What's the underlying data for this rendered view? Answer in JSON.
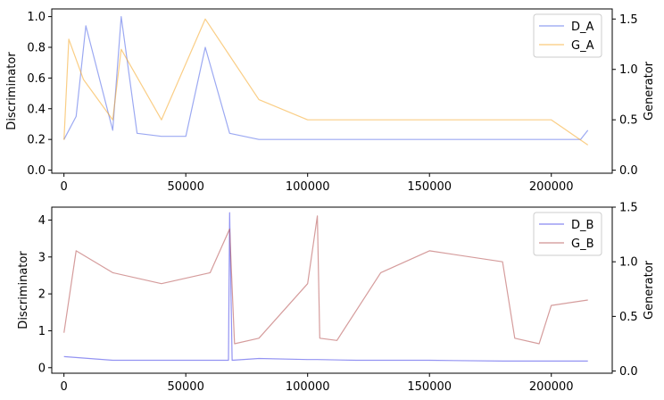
{
  "chart_data": [
    {
      "type": "line",
      "title": "",
      "xlabel": "",
      "ylabel": "Discriminator",
      "y2label": "Generator",
      "xlim": [
        -5000,
        225000
      ],
      "ylim": [
        -0.02,
        1.05
      ],
      "y2lim": [
        -0.03,
        1.6
      ],
      "xticks": [
        "0",
        "50000",
        "100000",
        "150000",
        "200000"
      ],
      "yticks": [
        "0.0",
        "0.2",
        "0.4",
        "0.6",
        "0.8",
        "1.0"
      ],
      "y2ticks": [
        "0.0",
        "0.5",
        "1.0",
        "1.5"
      ],
      "legend_position": "top-right",
      "series": [
        {
          "name": "D_A",
          "axis": "left",
          "color": "#4a63e8",
          "x": [
            0,
            5000,
            9000,
            20000,
            23500,
            30000,
            40000,
            50000,
            58000,
            68000,
            80000,
            100000,
            120000,
            150000,
            180000,
            200000,
            212000,
            215000
          ],
          "values": [
            0.2,
            0.35,
            0.94,
            0.26,
            1.0,
            0.24,
            0.22,
            0.22,
            0.8,
            0.24,
            0.2,
            0.2,
            0.2,
            0.2,
            0.2,
            0.2,
            0.2,
            0.26
          ]
        },
        {
          "name": "G_A",
          "axis": "right",
          "color": "#f5a623",
          "x": [
            0,
            2000,
            8000,
            20000,
            23500,
            40000,
            58000,
            80000,
            100000,
            120000,
            150000,
            180000,
            200000,
            215000
          ],
          "values": [
            0.3,
            1.3,
            0.9,
            0.5,
            1.2,
            0.5,
            1.5,
            0.7,
            0.5,
            0.5,
            0.5,
            0.5,
            0.5,
            0.25
          ]
        }
      ]
    },
    {
      "type": "line",
      "title": "",
      "xlabel": "",
      "ylabel": "Discriminator",
      "y2label": "Generator",
      "xlim": [
        -5000,
        225000
      ],
      "ylim": [
        -0.15,
        4.35
      ],
      "y2lim": [
        -0.02,
        1.5
      ],
      "xticks": [
        "0",
        "50000",
        "100000",
        "150000",
        "200000"
      ],
      "yticks": [
        "0",
        "1",
        "2",
        "3",
        "4"
      ],
      "y2ticks": [
        "0.0",
        "0.5",
        "1.0",
        "1.5"
      ],
      "legend_position": "top-right",
      "series": [
        {
          "name": "D_B",
          "axis": "left",
          "color": "#3a3ae8",
          "x": [
            0,
            20000,
            40000,
            60000,
            67500,
            68000,
            69000,
            80000,
            100000,
            104000,
            120000,
            150000,
            180000,
            200000,
            215000
          ],
          "values": [
            0.3,
            0.2,
            0.2,
            0.2,
            0.2,
            4.2,
            0.2,
            0.25,
            0.22,
            0.22,
            0.2,
            0.2,
            0.18,
            0.18,
            0.18
          ]
        },
        {
          "name": "G_B",
          "axis": "right",
          "color": "#b24a4a",
          "x": [
            0,
            5000,
            20000,
            40000,
            60000,
            68000,
            70000,
            80000,
            100000,
            104000,
            105000,
            112000,
            130000,
            150000,
            180000,
            185000,
            195000,
            200000,
            215000
          ],
          "values": [
            0.35,
            1.1,
            0.9,
            0.8,
            0.9,
            1.3,
            0.25,
            0.3,
            0.8,
            1.42,
            0.3,
            0.28,
            0.9,
            1.1,
            1.0,
            0.3,
            0.25,
            0.6,
            0.65
          ]
        }
      ]
    }
  ]
}
